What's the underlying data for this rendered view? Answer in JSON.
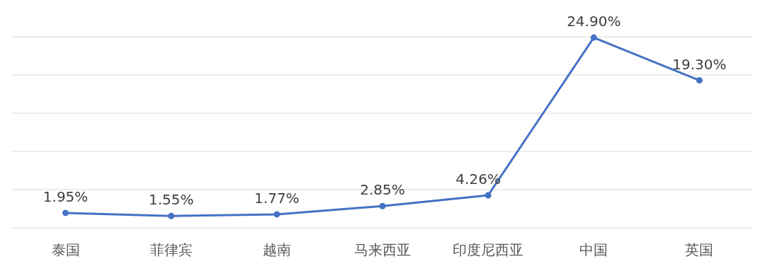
{
  "chart_data": {
    "type": "line",
    "categories": [
      "泰国",
      "菲律宾",
      "越南",
      "马来西亚",
      "印度尼西亚",
      "中国",
      "英国"
    ],
    "series": [
      {
        "color": "#4472c4",
        "values": [
          1.95,
          1.55,
          1.77,
          2.85,
          4.26,
          24.9,
          19.3
        ],
        "value_labels": [
          "1.95%",
          "1.55%",
          "1.77%",
          "2.85%",
          "4.26%",
          "24.90%",
          "19.30%"
        ]
      }
    ],
    "ylim": [
      0,
      25
    ],
    "yticks": [
      {
        "value": 0,
        "label": null
      },
      {
        "value": 5,
        "label": null
      },
      {
        "value": 10,
        "label": null
      },
      {
        "value": 15,
        "label": null
      },
      {
        "value": 20,
        "label": null
      },
      {
        "value": 25,
        "label": null
      }
    ],
    "tick_labels": "x",
    "grid": "y",
    "marker": "circle"
  }
}
